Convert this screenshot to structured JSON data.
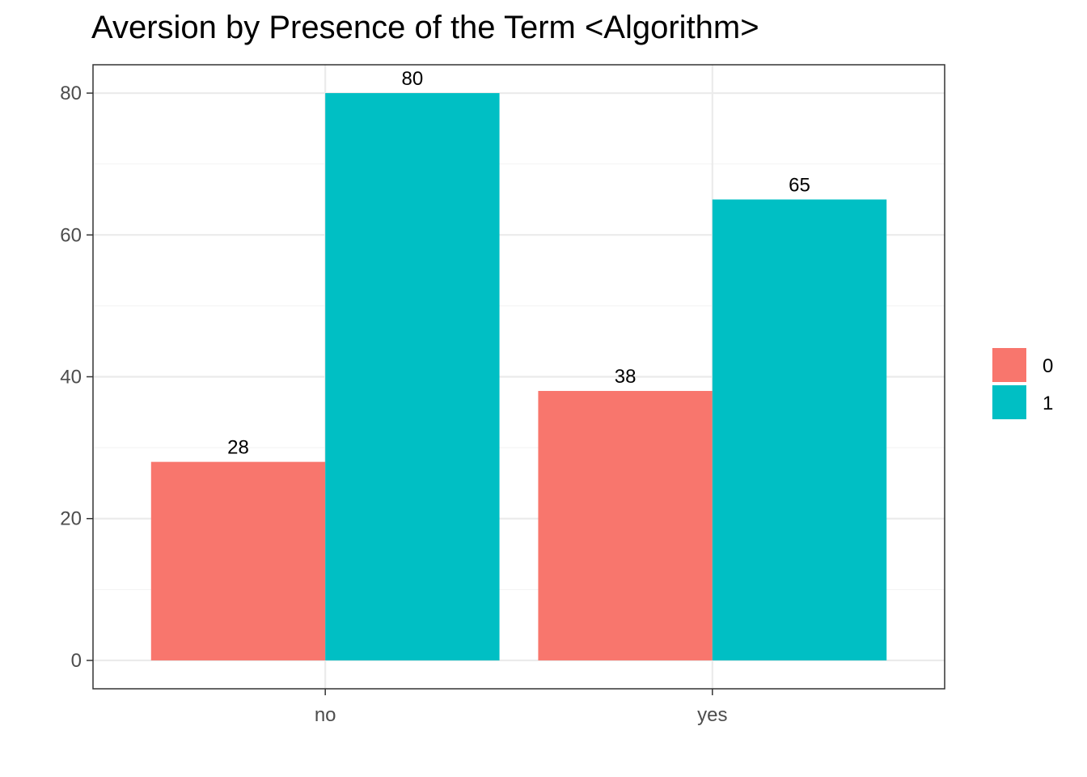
{
  "chart_data": {
    "type": "bar",
    "title": "Aversion by Presence of the Term <Algorithm>",
    "xlabel": "",
    "ylabel": "",
    "categories": [
      "no",
      "yes"
    ],
    "series": [
      {
        "name": "0",
        "color": "#F8766D",
        "values": [
          28,
          38
        ]
      },
      {
        "name": "1",
        "color": "#00BFC4",
        "values": [
          80,
          65
        ]
      }
    ],
    "ylim": [
      -4,
      84
    ],
    "y_ticks": [
      0,
      20,
      40,
      60,
      80
    ],
    "grid": true,
    "legend_position": "right",
    "data_labels": true
  }
}
